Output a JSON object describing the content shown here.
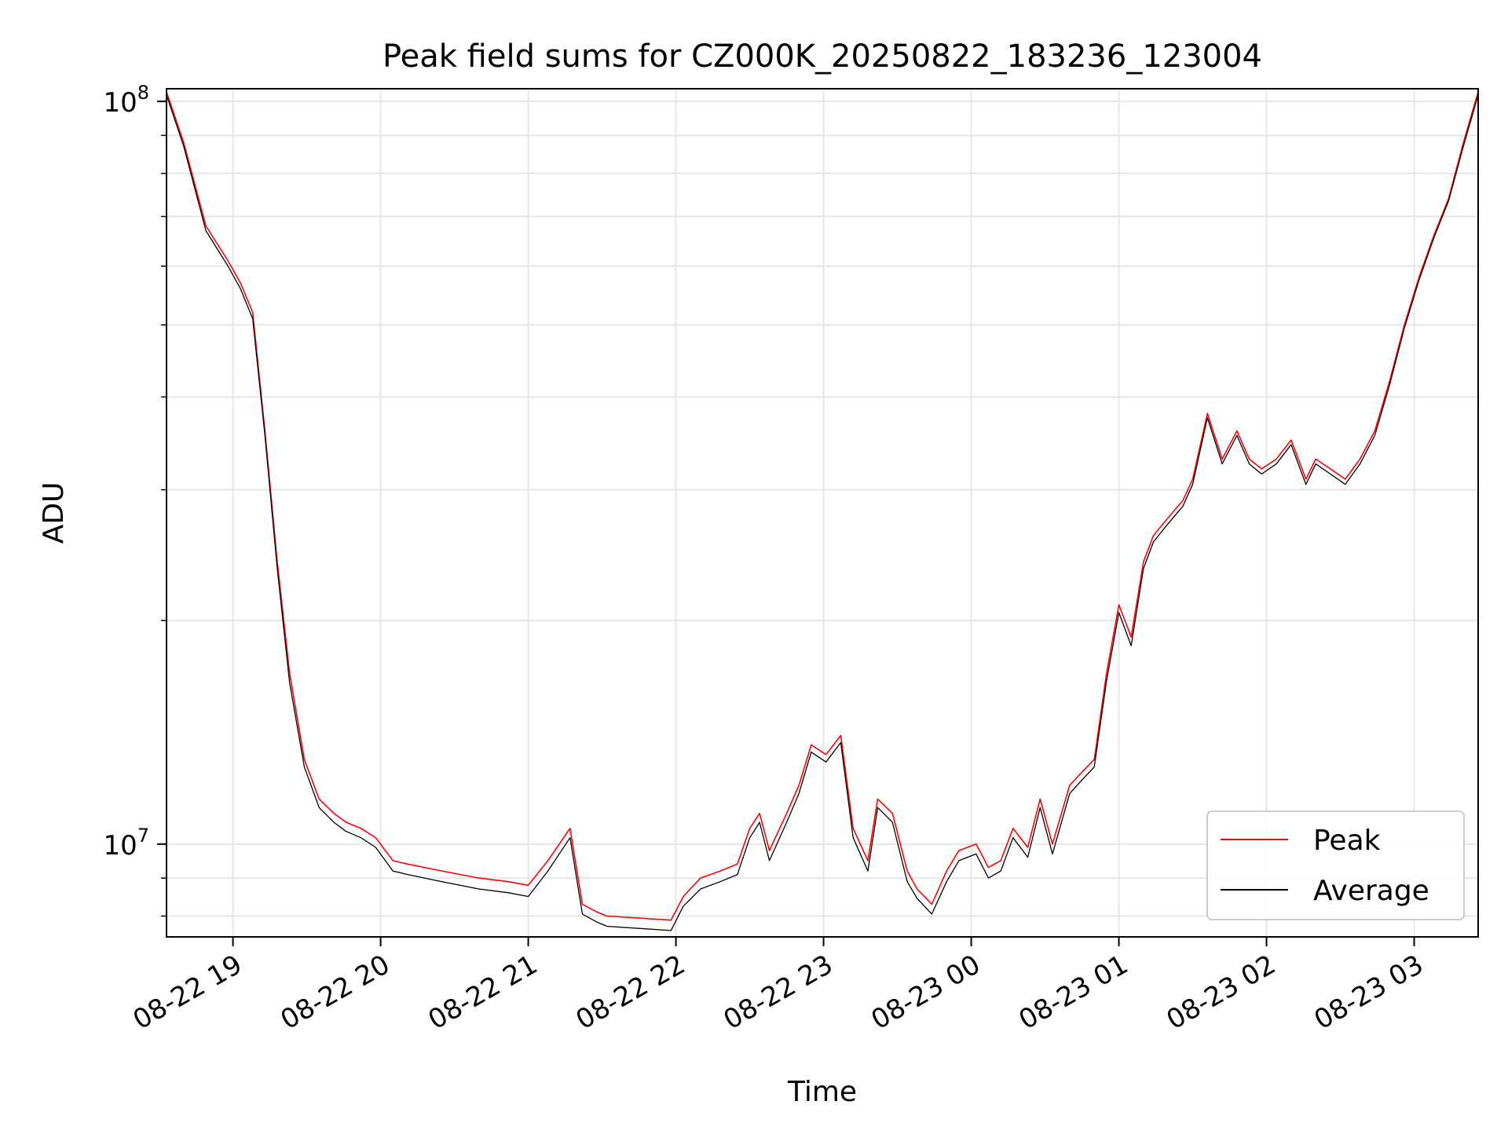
{
  "chart_data": {
    "type": "line",
    "title": "Peak field sums for CZ000K_20250822_183236_123004",
    "xlabel": "Time",
    "ylabel": "ADU",
    "x_scale": "time",
    "y_scale": "log",
    "xlim": [
      "2025-08-22 18:33",
      "2025-08-23 03:26"
    ],
    "ylim": [
      7500000,
      104000000
    ],
    "x_ticks": [
      {
        "label": "08-22 19",
        "value": "2025-08-22 19:00"
      },
      {
        "label": "08-22 20",
        "value": "2025-08-22 20:00"
      },
      {
        "label": "08-22 21",
        "value": "2025-08-22 21:00"
      },
      {
        "label": "08-22 22",
        "value": "2025-08-22 22:00"
      },
      {
        "label": "08-22 23",
        "value": "2025-08-22 23:00"
      },
      {
        "label": "08-23 00",
        "value": "2025-08-23 00:00"
      },
      {
        "label": "08-23 01",
        "value": "2025-08-23 01:00"
      },
      {
        "label": "08-23 02",
        "value": "2025-08-23 02:00"
      },
      {
        "label": "08-23 03",
        "value": "2025-08-23 03:00"
      }
    ],
    "y_ticks": [
      {
        "label": "10",
        "exp": "7",
        "value": 10000000
      },
      {
        "label": "10",
        "exp": "8",
        "value": 100000000
      }
    ],
    "y_minor_ticks": [
      8000000,
      9000000,
      20000000,
      30000000,
      40000000,
      50000000,
      60000000,
      70000000,
      80000000,
      90000000
    ],
    "grid": true,
    "legend_position": "bottom-right",
    "series": [
      {
        "name": "Peak",
        "color": "#ff0000",
        "x": [
          "2025-08-22 18:33",
          "2025-08-22 18:40",
          "2025-08-22 18:49",
          "2025-08-22 18:54",
          "2025-08-22 18:58",
          "2025-08-22 19:03",
          "2025-08-22 19:08",
          "2025-08-22 19:13",
          "2025-08-22 19:18",
          "2025-08-22 19:23",
          "2025-08-22 19:29",
          "2025-08-22 19:35",
          "2025-08-22 19:41",
          "2025-08-22 19:46",
          "2025-08-22 19:52",
          "2025-08-22 19:58",
          "2025-08-22 20:05",
          "2025-08-22 20:11",
          "2025-08-22 20:25",
          "2025-08-22 20:40",
          "2025-08-22 20:52",
          "2025-08-22 21:00",
          "2025-08-22 21:08",
          "2025-08-22 21:17",
          "2025-08-22 21:22",
          "2025-08-22 21:28",
          "2025-08-22 21:32",
          "2025-08-22 21:45",
          "2025-08-22 21:58",
          "2025-08-22 22:03",
          "2025-08-22 22:10",
          "2025-08-22 22:18",
          "2025-08-22 22:25",
          "2025-08-22 22:30",
          "2025-08-22 22:34",
          "2025-08-22 22:38",
          "2025-08-22 22:45",
          "2025-08-22 22:50",
          "2025-08-22 22:55",
          "2025-08-22 23:01",
          "2025-08-22 23:07",
          "2025-08-22 23:12",
          "2025-08-22 23:18",
          "2025-08-22 23:22",
          "2025-08-22 23:28",
          "2025-08-22 23:34",
          "2025-08-22 23:38",
          "2025-08-22 23:44",
          "2025-08-22 23:50",
          "2025-08-22 23:55",
          "2025-08-23 00:02",
          "2025-08-23 00:07",
          "2025-08-23 00:12",
          "2025-08-23 00:17",
          "2025-08-23 00:23",
          "2025-08-23 00:28",
          "2025-08-23 00:33",
          "2025-08-23 00:40",
          "2025-08-23 00:45",
          "2025-08-23 00:50",
          "2025-08-23 00:55",
          "2025-08-23 01:00",
          "2025-08-23 01:05",
          "2025-08-23 01:10",
          "2025-08-23 01:14",
          "2025-08-23 01:18",
          "2025-08-23 01:22",
          "2025-08-23 01:26",
          "2025-08-23 01:30",
          "2025-08-23 01:36",
          "2025-08-23 01:42",
          "2025-08-23 01:48",
          "2025-08-23 01:53",
          "2025-08-23 01:58",
          "2025-08-23 02:04",
          "2025-08-23 02:10",
          "2025-08-23 02:16",
          "2025-08-23 02:20",
          "2025-08-23 02:26",
          "2025-08-23 02:32",
          "2025-08-23 02:38",
          "2025-08-23 02:44",
          "2025-08-23 02:50",
          "2025-08-23 02:56",
          "2025-08-23 03:02",
          "2025-08-23 03:08",
          "2025-08-23 03:14",
          "2025-08-23 03:20",
          "2025-08-23 03:26"
        ],
        "values": [
          103000000,
          88000000,
          68000000,
          64000000,
          61000000,
          57000000,
          52000000,
          36000000,
          24000000,
          17000000,
          13000000,
          11500000,
          11000000,
          10700000,
          10500000,
          10200000,
          9500000,
          9400000,
          9200000,
          9000000,
          8900000,
          8800000,
          9500000,
          10500000,
          8300000,
          8100000,
          8000000,
          7950000,
          7900000,
          8500000,
          9000000,
          9200000,
          9400000,
          10500000,
          11000000,
          9800000,
          11000000,
          12000000,
          13600000,
          13200000,
          14000000,
          10500000,
          9500000,
          11500000,
          11000000,
          9200000,
          8700000,
          8300000,
          9200000,
          9800000,
          10000000,
          9300000,
          9500000,
          10500000,
          9900000,
          11500000,
          10000000,
          12000000,
          12500000,
          13000000,
          17000000,
          21000000,
          19000000,
          24000000,
          26000000,
          27000000,
          28000000,
          29000000,
          31000000,
          38000000,
          33000000,
          36000000,
          33000000,
          32000000,
          33000000,
          35000000,
          31000000,
          33000000,
          32000000,
          31000000,
          33000000,
          36000000,
          42000000,
          50000000,
          58000000,
          66000000,
          74000000,
          88000000,
          103000000
        ]
      },
      {
        "name": "Average",
        "color": "#000000",
        "x": [
          "2025-08-22 18:33",
          "2025-08-22 18:40",
          "2025-08-22 18:49",
          "2025-08-22 18:54",
          "2025-08-22 18:58",
          "2025-08-22 19:03",
          "2025-08-22 19:08",
          "2025-08-22 19:13",
          "2025-08-22 19:18",
          "2025-08-22 19:23",
          "2025-08-22 19:29",
          "2025-08-22 19:35",
          "2025-08-22 19:41",
          "2025-08-22 19:46",
          "2025-08-22 19:52",
          "2025-08-22 19:58",
          "2025-08-22 20:05",
          "2025-08-22 20:11",
          "2025-08-22 20:25",
          "2025-08-22 20:40",
          "2025-08-22 20:52",
          "2025-08-22 21:00",
          "2025-08-22 21:08",
          "2025-08-22 21:17",
          "2025-08-22 21:22",
          "2025-08-22 21:28",
          "2025-08-22 21:32",
          "2025-08-22 21:45",
          "2025-08-22 21:58",
          "2025-08-22 22:03",
          "2025-08-22 22:10",
          "2025-08-22 22:18",
          "2025-08-22 22:25",
          "2025-08-22 22:30",
          "2025-08-22 22:34",
          "2025-08-22 22:38",
          "2025-08-22 22:45",
          "2025-08-22 22:50",
          "2025-08-22 22:55",
          "2025-08-22 23:01",
          "2025-08-22 23:07",
          "2025-08-22 23:12",
          "2025-08-22 23:18",
          "2025-08-22 23:22",
          "2025-08-22 23:28",
          "2025-08-22 23:34",
          "2025-08-22 23:38",
          "2025-08-22 23:44",
          "2025-08-22 23:50",
          "2025-08-22 23:55",
          "2025-08-23 00:02",
          "2025-08-23 00:07",
          "2025-08-23 00:12",
          "2025-08-23 00:17",
          "2025-08-23 00:23",
          "2025-08-23 00:28",
          "2025-08-23 00:33",
          "2025-08-23 00:40",
          "2025-08-23 00:45",
          "2025-08-23 00:50",
          "2025-08-23 00:55",
          "2025-08-23 01:00",
          "2025-08-23 01:05",
          "2025-08-23 01:10",
          "2025-08-23 01:14",
          "2025-08-23 01:18",
          "2025-08-23 01:22",
          "2025-08-23 01:26",
          "2025-08-23 01:30",
          "2025-08-23 01:36",
          "2025-08-23 01:42",
          "2025-08-23 01:48",
          "2025-08-23 01:53",
          "2025-08-23 01:58",
          "2025-08-23 02:04",
          "2025-08-23 02:10",
          "2025-08-23 02:16",
          "2025-08-23 02:20",
          "2025-08-23 02:26",
          "2025-08-23 02:32",
          "2025-08-23 02:38",
          "2025-08-23 02:44",
          "2025-08-23 02:50",
          "2025-08-23 02:56",
          "2025-08-23 03:02",
          "2025-08-23 03:08",
          "2025-08-23 03:14",
          "2025-08-23 03:20",
          "2025-08-23 03:26"
        ],
        "values": [
          102000000,
          87000000,
          67000000,
          63000000,
          60000000,
          56000000,
          51000000,
          35500000,
          23500000,
          16500000,
          12700000,
          11200000,
          10700000,
          10400000,
          10200000,
          9900000,
          9200000,
          9100000,
          8900000,
          8700000,
          8600000,
          8500000,
          9200000,
          10200000,
          8050000,
          7850000,
          7750000,
          7700000,
          7650000,
          8250000,
          8700000,
          8900000,
          9100000,
          10200000,
          10700000,
          9500000,
          10700000,
          11700000,
          13300000,
          12900000,
          13700000,
          10200000,
          9200000,
          11200000,
          10700000,
          8900000,
          8450000,
          8050000,
          8900000,
          9500000,
          9700000,
          9000000,
          9200000,
          10200000,
          9600000,
          11200000,
          9700000,
          11700000,
          12200000,
          12700000,
          16600000,
          20500000,
          18500000,
          23500000,
          25500000,
          26500000,
          27500000,
          28500000,
          30500000,
          37500000,
          32500000,
          35500000,
          32500000,
          31500000,
          32500000,
          34500000,
          30500000,
          32500000,
          31500000,
          30500000,
          32500000,
          35500000,
          41500000,
          49500000,
          57500000,
          65500000,
          73500000,
          87000000,
          102000000
        ]
      }
    ]
  }
}
